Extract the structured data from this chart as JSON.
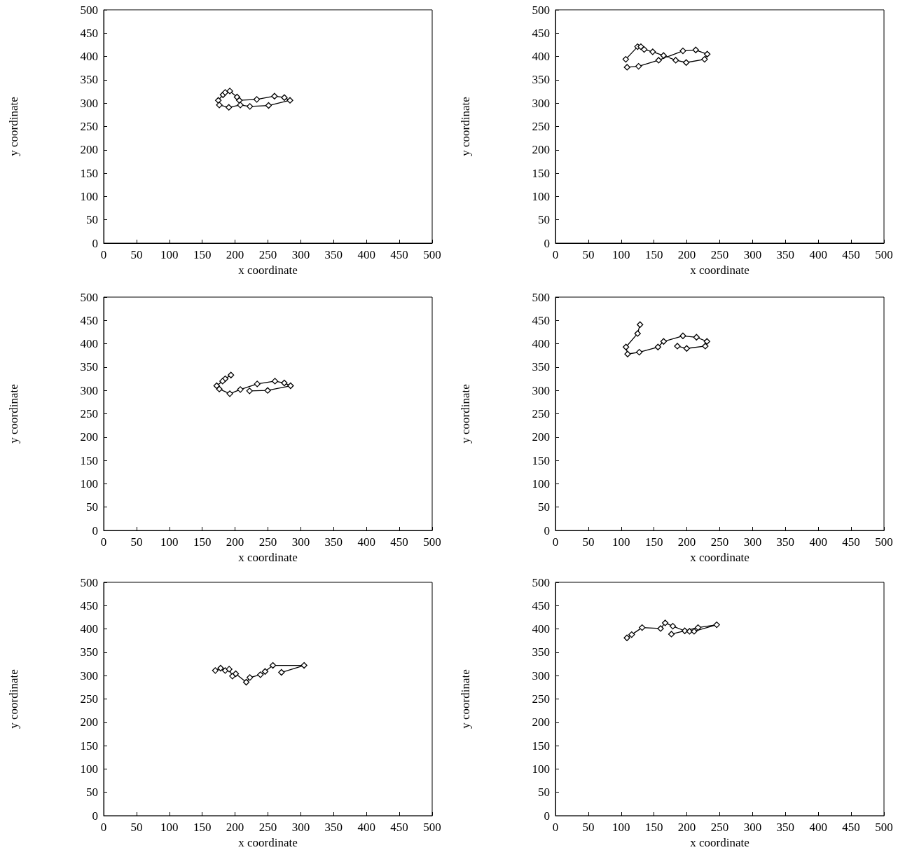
{
  "chart_data": [
    {
      "type": "line",
      "xlabel": "x coordinate",
      "ylabel": "y coordinate",
      "color": "#000000",
      "marker": "diamond",
      "line_style": "solid",
      "xlim": [
        0,
        500
      ],
      "ylim": [
        0,
        500
      ],
      "xticks": [
        0,
        50,
        100,
        150,
        200,
        250,
        300,
        350,
        400,
        450,
        500
      ],
      "yticks": [
        0,
        50,
        100,
        150,
        200,
        250,
        300,
        350,
        400,
        450,
        500
      ],
      "x": [
        174.5,
        181.6,
        185,
        192,
        203,
        206.5,
        233,
        260,
        275,
        283.6,
        251,
        222.5,
        208,
        190.5,
        176
      ],
      "values": [
        306,
        318,
        323,
        326,
        313,
        306,
        308,
        315,
        312,
        306,
        295,
        293,
        296,
        291,
        296
      ]
    },
    {
      "type": "line",
      "xlabel": "x coordinate",
      "ylabel": "y coordinate",
      "color": "#000000",
      "marker": "diamond",
      "line_style": "solid",
      "xlim": [
        0,
        500
      ],
      "ylim": [
        0,
        500
      ],
      "xticks": [
        0,
        50,
        100,
        150,
        200,
        250,
        300,
        350,
        400,
        450,
        500
      ],
      "yticks": [
        0,
        50,
        100,
        150,
        200,
        250,
        300,
        350,
        400,
        450,
        500
      ],
      "x": [
        107,
        125,
        130,
        135,
        148,
        164.5,
        183,
        199,
        227,
        231,
        213.5,
        194,
        157,
        126.5,
        109
      ],
      "values": [
        394,
        421,
        421,
        415,
        410,
        402,
        392,
        387,
        394,
        405,
        414,
        412,
        392,
        379,
        377
      ]
    },
    {
      "type": "line",
      "xlabel": "x coordinate",
      "ylabel": "y coordinate",
      "color": "#000000",
      "marker": "diamond",
      "line_style": "solid",
      "xlim": [
        0,
        500
      ],
      "ylim": [
        0,
        500
      ],
      "xticks": [
        0,
        50,
        100,
        150,
        200,
        250,
        300,
        350,
        400,
        450,
        500
      ],
      "yticks": [
        0,
        50,
        100,
        150,
        200,
        250,
        300,
        350,
        400,
        450,
        500
      ],
      "x": [
        193.7,
        185,
        181,
        172,
        176,
        192,
        208,
        233.7,
        260.7,
        274.9,
        284.5,
        249.6,
        222
      ],
      "values": [
        333,
        325,
        320,
        310,
        303,
        293,
        302,
        314,
        320,
        316,
        310,
        300,
        299
      ]
    },
    {
      "type": "line",
      "xlabel": "x coordinate",
      "ylabel": "y coordinate",
      "color": "#000000",
      "marker": "diamond",
      "line_style": "solid",
      "xlim": [
        0,
        500
      ],
      "ylim": [
        0,
        500
      ],
      "xticks": [
        0,
        50,
        100,
        150,
        200,
        250,
        300,
        350,
        400,
        450,
        500
      ],
      "yticks": [
        0,
        50,
        100,
        150,
        200,
        250,
        300,
        350,
        400,
        450,
        500
      ],
      "x": [
        128.7,
        125,
        107.3,
        109.8,
        127.6,
        156,
        164.6,
        194,
        214.6,
        230.6,
        228,
        199.7,
        185.5
      ],
      "values": [
        441,
        422,
        393,
        378,
        382,
        393,
        405,
        417,
        414,
        405,
        395,
        390,
        395
      ]
    },
    {
      "type": "line",
      "xlabel": "x coordinate",
      "ylabel": "y coordinate",
      "color": "#000000",
      "marker": "diamond",
      "line_style": "solid",
      "xlim": [
        0,
        500
      ],
      "ylim": [
        0,
        500
      ],
      "xticks": [
        0,
        50,
        100,
        150,
        200,
        250,
        300,
        350,
        400,
        450,
        500
      ],
      "yticks": [
        0,
        50,
        100,
        150,
        200,
        250,
        300,
        350,
        400,
        450,
        500
      ],
      "x": [
        169.9,
        178,
        185,
        191,
        196,
        201,
        217,
        222.5,
        238.6,
        245.7,
        257.5,
        305,
        270.6
      ],
      "values": [
        311,
        316,
        311,
        314,
        299,
        304,
        286,
        296,
        302,
        309,
        322,
        322,
        307
      ]
    },
    {
      "type": "line",
      "xlabel": "x coordinate",
      "ylabel": "y coordinate",
      "color": "#000000",
      "marker": "diamond",
      "line_style": "solid",
      "xlim": [
        0,
        500
      ],
      "ylim": [
        0,
        500
      ],
      "xticks": [
        0,
        50,
        100,
        150,
        200,
        250,
        300,
        350,
        400,
        450,
        500
      ],
      "yticks": [
        0,
        50,
        100,
        150,
        200,
        250,
        300,
        350,
        400,
        450,
        500
      ],
      "x": [
        108.8,
        116,
        131.9,
        160,
        167,
        178.6,
        196.8,
        204,
        211,
        245.4,
        217,
        176.5
      ],
      "values": [
        381,
        388,
        403,
        401,
        413,
        406,
        396,
        395,
        395,
        409,
        403,
        389
      ]
    }
  ]
}
